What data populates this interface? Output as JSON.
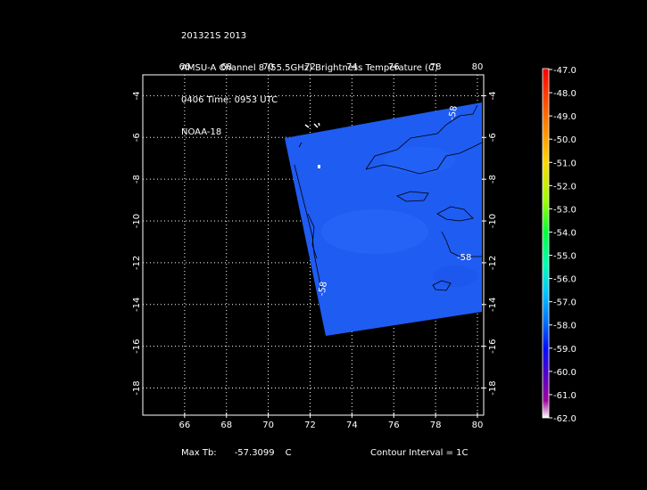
{
  "header": {
    "line1": "201321S 2013",
    "line2": "AMSU-A Channel 8 (55.5GHz) Brightness Temperature (C)",
    "line3": "0406 Time: 0953 UTC",
    "line4": "NOAA-18"
  },
  "map": {
    "lon_ticks": [
      "66",
      "68",
      "70",
      "72",
      "74",
      "76",
      "78",
      "80"
    ],
    "lat_ticks": [
      "-4",
      "-6",
      "-8",
      "-10",
      "-12",
      "-14",
      "-16",
      "-18"
    ],
    "contour_labels": [
      "-58",
      "-58",
      "-58"
    ],
    "swath_color": "#1f5cf2",
    "grid_color": "#ffffff"
  },
  "colorbar": {
    "labels": [
      "-47.0",
      "-48.0",
      "-49.0",
      "-50.0",
      "-51.0",
      "-52.0",
      "-53.0",
      "-54.0",
      "-55.0",
      "-56.0",
      "-57.0",
      "-58.0",
      "-59.0",
      "-60.0",
      "-61.0",
      "-62.0"
    ]
  },
  "footer": {
    "max_label": "Max Tb:",
    "max_value": "-57.3099",
    "max_unit": "C",
    "contour_interval": "Contour Interval = 1C"
  }
}
